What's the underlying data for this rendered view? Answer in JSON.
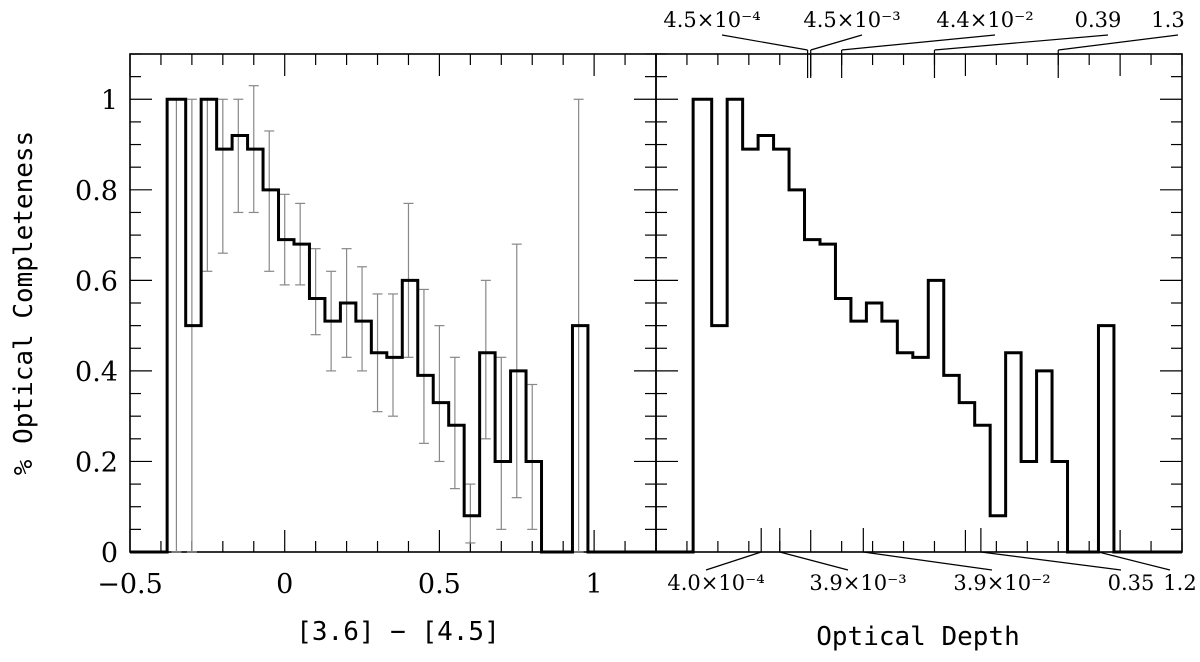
{
  "chart_data": [
    {
      "type": "bar",
      "panel": "left",
      "style": "step-histogram with error bars",
      "xlabel": "[3.6] − [4.5]",
      "ylabel": "% Optical Completeness",
      "xlim": [
        -0.5,
        1.2
      ],
      "ylim": [
        0,
        1.1
      ],
      "x_ticks": [
        {
          "value": -0.5,
          "label": "−0.5"
        },
        {
          "value": 0,
          "label": "0"
        },
        {
          "value": 0.5,
          "label": "0.5"
        },
        {
          "value": 1,
          "label": "1"
        }
      ],
      "y_ticks": [
        {
          "value": 0,
          "label": "0"
        },
        {
          "value": 0.2,
          "label": "0.2"
        },
        {
          "value": 0.4,
          "label": "0.4"
        },
        {
          "value": 0.6,
          "label": "0.6"
        },
        {
          "value": 0.8,
          "label": "0.8"
        },
        {
          "value": 1,
          "label": "1"
        }
      ],
      "bin_edges": [
        -0.5,
        -0.38,
        -0.32,
        -0.27,
        -0.22,
        -0.17,
        -0.12,
        -0.07,
        -0.02,
        0.03,
        0.08,
        0.13,
        0.18,
        0.23,
        0.28,
        0.33,
        0.38,
        0.43,
        0.48,
        0.53,
        0.58,
        0.63,
        0.68,
        0.73,
        0.78,
        0.83,
        0.88,
        0.93,
        0.98,
        1.2
      ],
      "values": [
        0,
        1.0,
        0.5,
        1.0,
        0.89,
        0.92,
        0.89,
        0.8,
        0.69,
        0.68,
        0.56,
        0.51,
        0.55,
        0.51,
        0.44,
        0.43,
        0.6,
        0.39,
        0.33,
        0.28,
        0.08,
        0.44,
        0.2,
        0.4,
        0.2,
        0.0,
        0.0,
        0.5,
        0
      ],
      "error_bars": [
        {
          "x": -0.35,
          "low": 0.0,
          "high": 1.0
        },
        {
          "x": -0.3,
          "low": 0.0,
          "high": 1.0
        },
        {
          "x": -0.25,
          "low": 0.62,
          "high": 1.0
        },
        {
          "x": -0.2,
          "low": 0.66,
          "high": 1.0
        },
        {
          "x": -0.15,
          "low": 0.75,
          "high": 1.0
        },
        {
          "x": -0.1,
          "low": 0.75,
          "high": 1.03
        },
        {
          "x": -0.05,
          "low": 0.62,
          "high": 0.93
        },
        {
          "x": 0.0,
          "low": 0.59,
          "high": 0.79
        },
        {
          "x": 0.05,
          "low": 0.59,
          "high": 0.77
        },
        {
          "x": 0.1,
          "low": 0.48,
          "high": 0.67
        },
        {
          "x": 0.15,
          "low": 0.4,
          "high": 0.62
        },
        {
          "x": 0.2,
          "low": 0.43,
          "high": 0.67
        },
        {
          "x": 0.25,
          "low": 0.4,
          "high": 0.63
        },
        {
          "x": 0.3,
          "low": 0.31,
          "high": 0.57
        },
        {
          "x": 0.35,
          "low": 0.3,
          "high": 0.57
        },
        {
          "x": 0.4,
          "low": 0.43,
          "high": 0.77
        },
        {
          "x": 0.45,
          "low": 0.24,
          "high": 0.58
        },
        {
          "x": 0.5,
          "low": 0.2,
          "high": 0.5
        },
        {
          "x": 0.55,
          "low": 0.14,
          "high": 0.43
        },
        {
          "x": 0.6,
          "low": 0.02,
          "high": 0.15
        },
        {
          "x": 0.65,
          "low": 0.25,
          "high": 0.6
        },
        {
          "x": 0.7,
          "low": 0.05,
          "high": 0.43
        },
        {
          "x": 0.75,
          "low": 0.12,
          "high": 0.68
        },
        {
          "x": 0.8,
          "low": 0.05,
          "high": 0.37
        },
        {
          "x": 0.95,
          "low": 0.0,
          "high": 1.0
        }
      ]
    },
    {
      "type": "bar",
      "panel": "right",
      "style": "step-histogram",
      "xlabel": "Optical Depth",
      "ylim": [
        0,
        1.1
      ],
      "bin_edges": [
        -0.5,
        -0.38,
        -0.32,
        -0.27,
        -0.22,
        -0.17,
        -0.12,
        -0.07,
        -0.02,
        0.03,
        0.08,
        0.13,
        0.18,
        0.23,
        0.28,
        0.33,
        0.38,
        0.43,
        0.48,
        0.53,
        0.58,
        0.63,
        0.68,
        0.73,
        0.78,
        0.83,
        0.88,
        0.93,
        0.98,
        1.2
      ],
      "values": [
        0,
        1.0,
        0.5,
        1.0,
        0.89,
        0.92,
        0.89,
        0.8,
        0.69,
        0.68,
        0.56,
        0.51,
        0.55,
        0.51,
        0.44,
        0.43,
        0.6,
        0.39,
        0.33,
        0.28,
        0.08,
        0.44,
        0.2,
        0.4,
        0.2,
        0.0,
        0.0,
        0.5,
        0
      ],
      "top_axis_labels": [
        {
          "label_html": "4.5×10⁻⁴",
          "label": "4.5×10^-4",
          "at": -0.01
        },
        {
          "label_html": "4.5×10⁻³",
          "label": "4.5×10^-3",
          "at": 0.0
        },
        {
          "label_html": "4.4×10⁻²",
          "label": "4.4×10^-2",
          "at": 0.1
        },
        {
          "label_html": "0.39",
          "label": "0.39",
          "at": 0.4
        },
        {
          "label_html": "1.3",
          "label": "1.3",
          "at": 0.8
        }
      ],
      "bottom_axis_labels": [
        {
          "label_html": "4.0×10⁻⁴",
          "label": "4.0×10^-4",
          "at": -0.16
        },
        {
          "label_html": "3.9×10⁻³",
          "label": "3.9×10^-3",
          "at": -0.1
        },
        {
          "label_html": "3.9×10⁻²",
          "label": "3.9×10^-2",
          "at": 0.17
        },
        {
          "label_html": "0.35",
          "label": "0.35",
          "at": 0.55
        },
        {
          "label_html": "1.2",
          "label": "1.2",
          "at": 0.93
        }
      ]
    }
  ]
}
